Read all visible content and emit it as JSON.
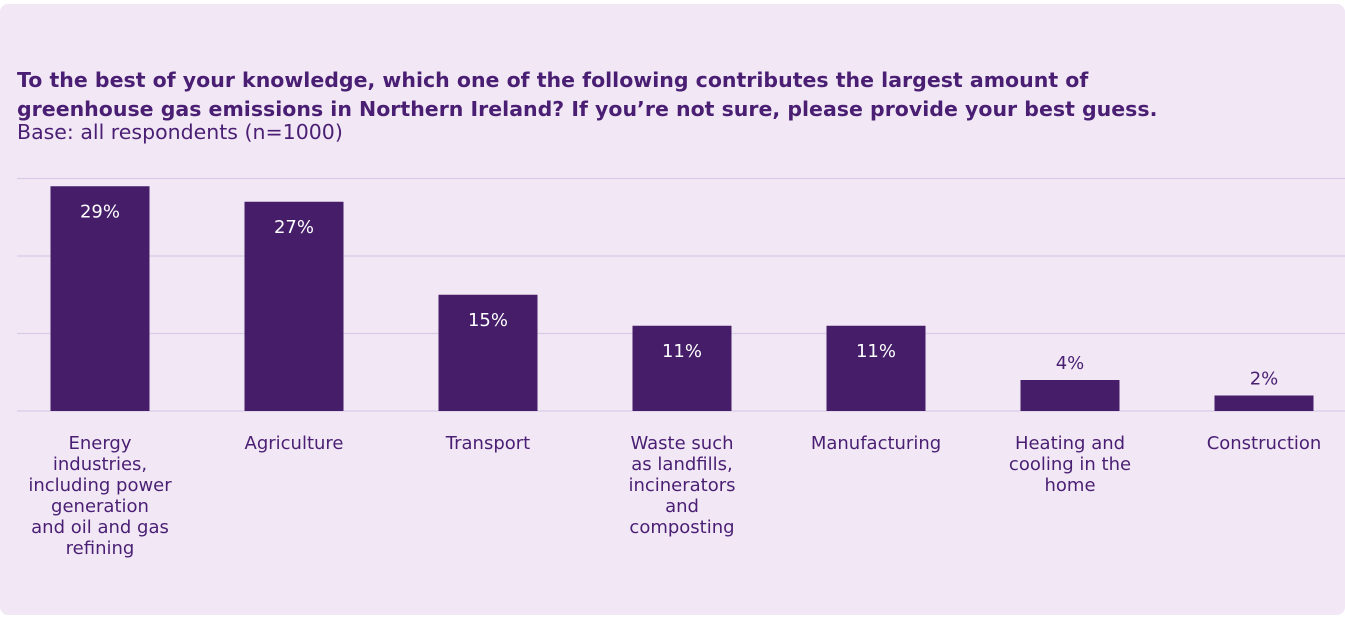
{
  "title": "To the best of your knowledge, which one of the following contributes the largest amount of greenhouse gas emissions in Northern Ireland? If you’re not sure, please provide your best guess.",
  "subtitle": "Base: all respondents (n=1000)",
  "colors": {
    "background": "#f1e7f5",
    "bar": "#451d69",
    "text": "#4a1f73",
    "grid": "#d9cbe6"
  },
  "chart_data": {
    "type": "bar",
    "title": "To the best of your knowledge, which one of the following contributes the largest amount of greenhouse gas emissions in Northern Ireland? If you’re not sure, please provide your best guess.",
    "subtitle": "Base: all respondents (n=1000)",
    "categories": [
      "Energy industries, including power generation and oil and gas refining",
      "Agriculture",
      "Transport",
      "Waste such as landfills, incinerators and composting",
      "Manufacturing",
      "Heating and cooling in the home",
      "Construction"
    ],
    "category_lines": [
      [
        "Energy",
        "industries,",
        "including power",
        "generation",
        "and oil and gas",
        "refining"
      ],
      [
        "Agriculture"
      ],
      [
        "Transport"
      ],
      [
        "Waste such",
        "as landfills,",
        "incinerators",
        "and",
        "composting"
      ],
      [
        "Manufacturing"
      ],
      [
        "Heating and",
        "cooling in the",
        "home"
      ],
      [
        "Construction"
      ]
    ],
    "values": [
      29,
      27,
      15,
      11,
      11,
      4,
      2
    ],
    "data_labels": [
      "29%",
      "27%",
      "15%",
      "11%",
      "11%",
      "4%",
      "2%"
    ],
    "ylim": [
      0,
      30
    ],
    "grid": true,
    "legend": "none",
    "xlabel": "",
    "ylabel": ""
  }
}
